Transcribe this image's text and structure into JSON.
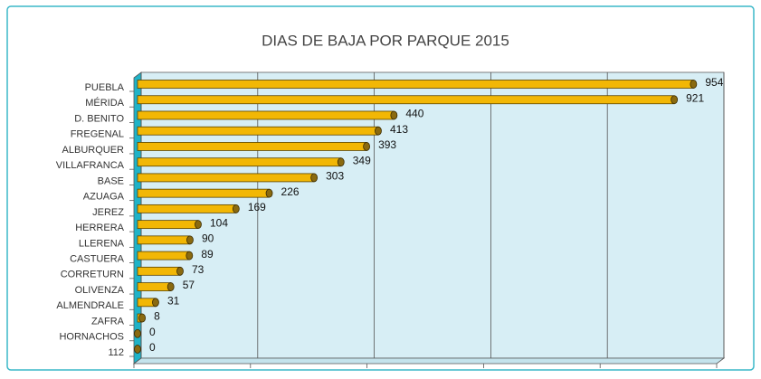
{
  "chart_data": {
    "type": "bar",
    "orientation": "horizontal",
    "title": "DIAS DE BAJA POR PARQUE 2015",
    "categories": [
      "PUEBLA",
      "MÉRIDA",
      "D. BENITO",
      "FREGENAL",
      "ALBURQUER",
      "VILLAFRANCA",
      "BASE",
      "AZUAGA",
      "JEREZ",
      "HERRERA",
      "LLERENA",
      "CASTUERA",
      "CORRETURN",
      "OLIVENZA",
      "ALMENDRALE",
      "ZAFRA",
      "HORNACHOS",
      "112"
    ],
    "values": [
      954,
      921,
      440,
      413,
      393,
      349,
      303,
      226,
      169,
      104,
      90,
      89,
      73,
      57,
      31,
      8,
      0,
      0
    ],
    "color": "#f2b705",
    "xlim": [
      0,
      1000
    ],
    "xticks": [
      0,
      200,
      400,
      600,
      800,
      1000
    ],
    "grid": true
  }
}
